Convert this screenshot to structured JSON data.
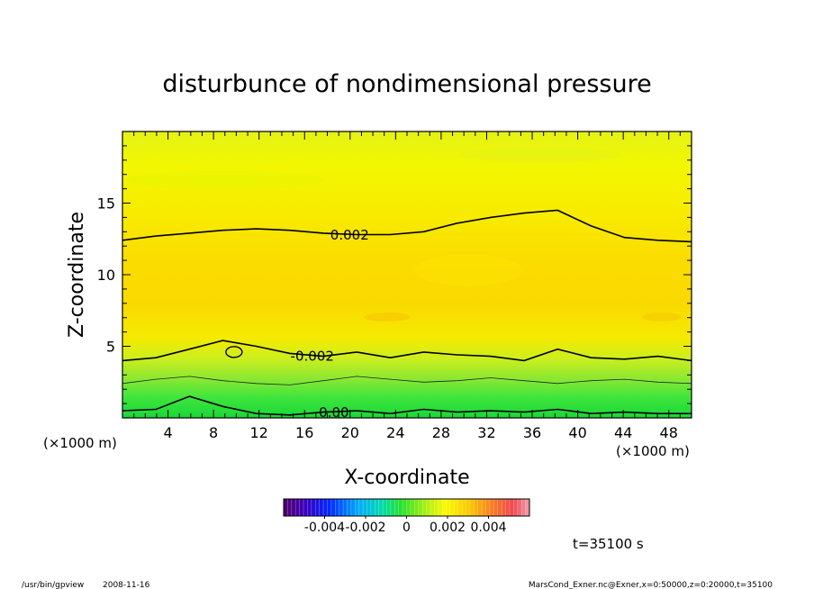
{
  "chart_data": {
    "type": "heatmap",
    "title": "disturbunce of nondimensional pressure",
    "xlabel": "X-coordinate",
    "ylabel": "Z-coordinate",
    "x_unit_left": "(×1000 m)",
    "x_unit_right": "(×1000 m)",
    "xlim": [
      0,
      50
    ],
    "ylim": [
      0,
      20
    ],
    "xticks": [
      "4",
      "8",
      "12",
      "16",
      "20",
      "24",
      "28",
      "32",
      "36",
      "40",
      "44",
      "48"
    ],
    "yticks": [
      "5",
      "10",
      "15"
    ],
    "colorbar": {
      "range": [
        -0.006,
        0.006
      ],
      "ticks": [
        "-0.004",
        "-0.002",
        "0",
        "0.002",
        "0.004"
      ]
    },
    "contours": [
      {
        "label": "0.002",
        "z_profile": [
          12.4,
          12.7,
          12.9,
          13.1,
          13.2,
          13.1,
          12.9,
          12.8,
          12.8,
          13.0,
          13.6,
          14.0,
          14.3,
          14.5,
          13.4,
          12.6,
          12.4,
          12.3
        ]
      },
      {
        "label": "-0.002",
        "z_profile": [
          4.0,
          4.2,
          4.8,
          5.4,
          5.0,
          4.5,
          4.3,
          4.6,
          4.2,
          4.6,
          4.4,
          4.3,
          4.0,
          4.8,
          4.2,
          4.1,
          4.3,
          4.0
        ]
      },
      {
        "label": "0.00",
        "z_profile": [
          0.5,
          0.6,
          1.5,
          0.8,
          0.3,
          0.2,
          0.4,
          0.5,
          0.3,
          0.6,
          0.4,
          0.5,
          0.4,
          0.6,
          0.3,
          0.4,
          0.3,
          0.3
        ]
      }
    ]
  },
  "footer": {
    "time": "t=35100 s",
    "program": "/usr/bin/gpview",
    "date": "2008-11-16",
    "source": "MarsCond_Exner.nc@Exner,x=0:50000,z=0:20000,t=35100"
  }
}
